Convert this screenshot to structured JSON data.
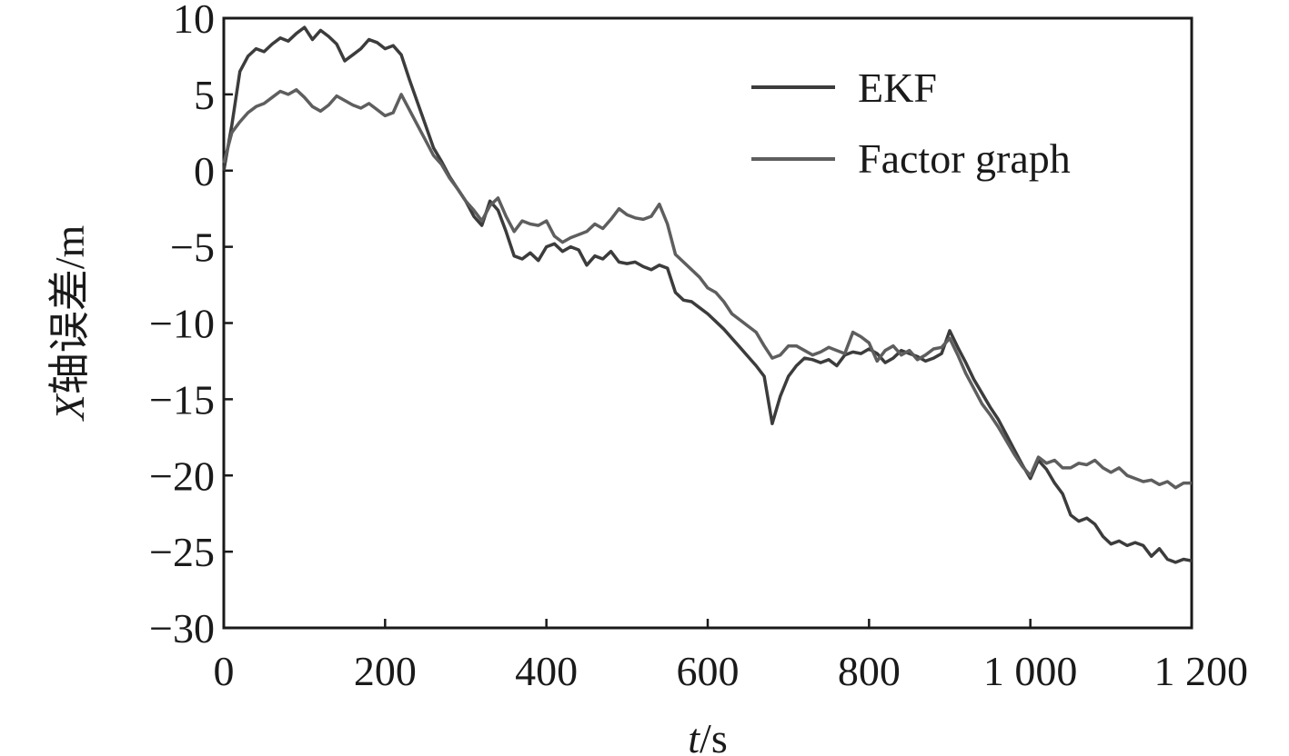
{
  "chart_data": {
    "type": "line",
    "xlabel_italic": "t",
    "xlabel_unit": "/s",
    "ylabel_italic": "X",
    "ylabel_text": "轴误差/m",
    "xlim": [
      0,
      1200
    ],
    "ylim": [
      -30,
      10
    ],
    "xticks": [
      0,
      200,
      400,
      600,
      800,
      1000,
      1200
    ],
    "xtick_labels": [
      "0",
      "200",
      "400",
      "600",
      "800",
      "1 000",
      "1 200"
    ],
    "yticks": [
      10,
      5,
      0,
      -5,
      -10,
      -15,
      -20,
      -25,
      -30
    ],
    "ytick_labels": [
      "10",
      "5",
      "0",
      "−5",
      "−10",
      "−15",
      "−20",
      "−25",
      "−30"
    ],
    "grid": false,
    "legend_position": "top-right",
    "series": [
      {
        "name": "EKF",
        "color": "#3c3c3c",
        "x": [
          0,
          10,
          20,
          30,
          40,
          50,
          60,
          70,
          80,
          90,
          100,
          110,
          120,
          130,
          140,
          150,
          160,
          170,
          180,
          190,
          200,
          210,
          220,
          230,
          240,
          250,
          260,
          270,
          280,
          290,
          300,
          310,
          320,
          330,
          340,
          350,
          360,
          370,
          380,
          390,
          400,
          410,
          420,
          430,
          440,
          450,
          460,
          470,
          480,
          490,
          500,
          510,
          520,
          530,
          540,
          550,
          560,
          570,
          580,
          590,
          600,
          610,
          620,
          630,
          640,
          650,
          660,
          670,
          680,
          690,
          700,
          710,
          720,
          730,
          740,
          750,
          760,
          770,
          780,
          790,
          800,
          810,
          820,
          830,
          840,
          850,
          860,
          870,
          880,
          890,
          900,
          910,
          920,
          930,
          940,
          950,
          960,
          970,
          980,
          990,
          1000,
          1010,
          1020,
          1030,
          1040,
          1050,
          1060,
          1070,
          1080,
          1090,
          1100,
          1110,
          1120,
          1130,
          1140,
          1150,
          1160,
          1170,
          1180,
          1190,
          1200
        ],
        "values": [
          0,
          3,
          6.5,
          7.5,
          8,
          7.8,
          8.3,
          8.7,
          8.5,
          9.0,
          9.4,
          8.6,
          9.2,
          8.8,
          8.3,
          7.2,
          7.6,
          8.0,
          8.6,
          8.4,
          8.0,
          8.2,
          7.6,
          6.0,
          4.5,
          3.0,
          1.5,
          0.6,
          -0.4,
          -1.2,
          -2.0,
          -3.0,
          -3.6,
          -2.0,
          -2.6,
          -4.0,
          -5.6,
          -5.8,
          -5.4,
          -5.9,
          -5.0,
          -4.8,
          -5.3,
          -5.0,
          -5.2,
          -6.2,
          -5.6,
          -5.8,
          -5.3,
          -6.0,
          -6.1,
          -6.0,
          -6.3,
          -6.5,
          -6.2,
          -6.4,
          -8.0,
          -8.5,
          -8.6,
          -9.0,
          -9.4,
          -9.9,
          -10.4,
          -11.0,
          -11.6,
          -12.2,
          -12.8,
          -13.5,
          -16.6,
          -14.8,
          -13.5,
          -12.8,
          -12.3,
          -12.4,
          -12.6,
          -12.4,
          -12.8,
          -12.1,
          -11.9,
          -12.0,
          -11.7,
          -12.0,
          -12.6,
          -12.3,
          -11.8,
          -12.0,
          -12.2,
          -12.5,
          -12.3,
          -12.0,
          -10.5,
          -11.6,
          -12.6,
          -13.7,
          -14.6,
          -15.5,
          -16.3,
          -17.3,
          -18.3,
          -19.3,
          -20.2,
          -19.0,
          -19.6,
          -20.5,
          -21.2,
          -22.6,
          -23.0,
          -22.8,
          -23.2,
          -24.0,
          -24.5,
          -24.3,
          -24.6,
          -24.4,
          -24.6,
          -25.3,
          -24.8,
          -25.5,
          -25.7,
          -25.5,
          -25.6
        ]
      },
      {
        "name": "Factor graph",
        "color": "#5e5e5e",
        "x": [
          0,
          10,
          20,
          30,
          40,
          50,
          60,
          70,
          80,
          90,
          100,
          110,
          120,
          130,
          140,
          150,
          160,
          170,
          180,
          190,
          200,
          210,
          220,
          230,
          240,
          250,
          260,
          270,
          280,
          290,
          300,
          310,
          320,
          330,
          340,
          350,
          360,
          370,
          380,
          390,
          400,
          410,
          420,
          430,
          440,
          450,
          460,
          470,
          480,
          490,
          500,
          510,
          520,
          530,
          540,
          550,
          560,
          570,
          580,
          590,
          600,
          610,
          620,
          630,
          640,
          650,
          660,
          670,
          680,
          690,
          700,
          710,
          720,
          730,
          740,
          750,
          760,
          770,
          780,
          790,
          800,
          810,
          820,
          830,
          840,
          850,
          860,
          870,
          880,
          890,
          900,
          910,
          920,
          930,
          940,
          950,
          960,
          970,
          980,
          990,
          1000,
          1010,
          1020,
          1030,
          1040,
          1050,
          1060,
          1070,
          1080,
          1090,
          1100,
          1110,
          1120,
          1130,
          1140,
          1150,
          1160,
          1170,
          1180,
          1190,
          1200
        ],
        "values": [
          0.5,
          2.5,
          3.2,
          3.8,
          4.2,
          4.4,
          4.8,
          5.2,
          5.0,
          5.3,
          4.8,
          4.2,
          3.9,
          4.3,
          4.9,
          4.6,
          4.3,
          4.1,
          4.4,
          4.0,
          3.6,
          3.8,
          5.0,
          4.0,
          3.0,
          2.0,
          1.0,
          0.4,
          -0.5,
          -1.2,
          -2.0,
          -2.6,
          -3.3,
          -2.3,
          -1.8,
          -3.0,
          -4.0,
          -3.3,
          -3.5,
          -3.6,
          -3.3,
          -4.3,
          -4.7,
          -4.4,
          -4.2,
          -4.0,
          -3.5,
          -3.8,
          -3.2,
          -2.5,
          -2.9,
          -3.1,
          -3.2,
          -3.0,
          -2.2,
          -3.5,
          -5.5,
          -6.0,
          -6.5,
          -7.0,
          -7.7,
          -8.0,
          -8.6,
          -9.4,
          -9.8,
          -10.2,
          -10.6,
          -11.5,
          -12.3,
          -12.1,
          -11.5,
          -11.5,
          -11.8,
          -12.1,
          -11.9,
          -11.6,
          -11.8,
          -12.0,
          -10.6,
          -10.9,
          -11.3,
          -12.5,
          -11.8,
          -11.5,
          -12.1,
          -11.8,
          -12.4,
          -12.1,
          -11.7,
          -11.6,
          -11.0,
          -12.1,
          -13.3,
          -14.3,
          -15.3,
          -16.0,
          -16.8,
          -17.7,
          -18.6,
          -19.4,
          -20.0,
          -18.8,
          -19.2,
          -19.0,
          -19.5,
          -19.5,
          -19.2,
          -19.3,
          -19.0,
          -19.5,
          -19.8,
          -19.5,
          -20.0,
          -20.2,
          -20.4,
          -20.3,
          -20.6,
          -20.4,
          -20.8,
          -20.5,
          -20.5
        ]
      }
    ]
  }
}
